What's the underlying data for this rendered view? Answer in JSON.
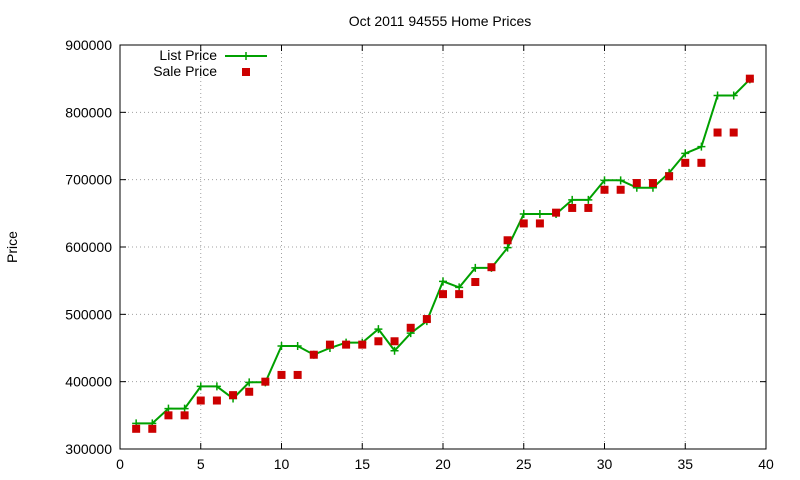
{
  "chart_data": {
    "type": "line",
    "title": "Oct 2011 94555 Home Prices",
    "xlabel": "",
    "ylabel": "Price",
    "xlim": [
      0,
      40
    ],
    "ylim": [
      300000,
      900000
    ],
    "xticks": [
      0,
      5,
      10,
      15,
      20,
      25,
      30,
      35,
      40
    ],
    "yticks": [
      300000,
      400000,
      500000,
      600000,
      700000,
      800000,
      900000
    ],
    "grid": true,
    "legend_position": "top-left",
    "series": [
      {
        "name": "List Price",
        "style": "line-with-plus-markers",
        "color": "#00a000",
        "x": [
          1,
          2,
          3,
          4,
          5,
          6,
          7,
          8,
          9,
          10,
          11,
          12,
          13,
          14,
          15,
          16,
          17,
          18,
          19,
          20,
          21,
          22,
          23,
          24,
          25,
          26,
          27,
          28,
          29,
          30,
          31,
          32,
          33,
          34,
          35,
          36,
          37,
          38,
          39
        ],
        "values": [
          338000,
          338000,
          360000,
          360000,
          393000,
          393000,
          375000,
          399000,
          399000,
          453000,
          453000,
          440000,
          450000,
          458000,
          458000,
          478000,
          446000,
          472000,
          490000,
          549000,
          540000,
          569000,
          569000,
          599000,
          649000,
          649000,
          649000,
          670000,
          670000,
          699000,
          699000,
          688000,
          688000,
          710000,
          739000,
          749000,
          825000,
          825000,
          849000
        ]
      },
      {
        "name": "Sale Price",
        "style": "square-markers",
        "color": "#cc0000",
        "x": [
          1,
          2,
          3,
          4,
          5,
          6,
          7,
          8,
          9,
          10,
          11,
          12,
          13,
          14,
          15,
          16,
          17,
          18,
          19,
          20,
          21,
          22,
          23,
          24,
          25,
          26,
          27,
          28,
          29,
          30,
          31,
          32,
          33,
          34,
          35,
          36,
          37,
          38,
          39
        ],
        "values": [
          330000,
          330000,
          350000,
          350000,
          372000,
          372000,
          380000,
          385000,
          400000,
          410000,
          410000,
          440000,
          455000,
          455000,
          455000,
          460000,
          460000,
          480000,
          493000,
          530000,
          530000,
          548000,
          570000,
          610000,
          635000,
          635000,
          651000,
          658000,
          658000,
          685000,
          685000,
          695000,
          695000,
          705000,
          725000,
          725000,
          770000,
          770000,
          850000
        ]
      }
    ]
  }
}
